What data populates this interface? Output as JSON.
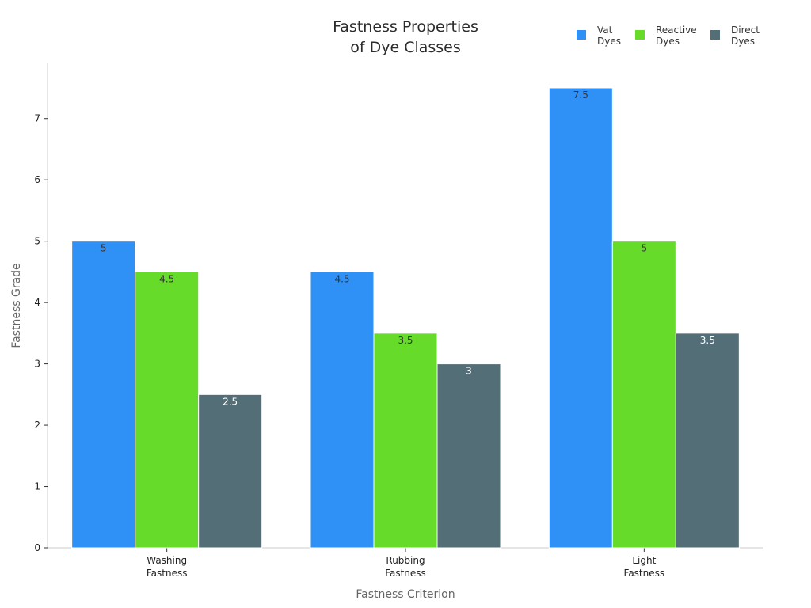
{
  "chart_data": {
    "type": "bar",
    "title": [
      "Fastness Properties",
      "of Dye Classes"
    ],
    "xlabel": "Fastness Criterion",
    "ylabel": "Fastness Grade",
    "categories": [
      [
        "Washing",
        "Fastness"
      ],
      [
        "Rubbing",
        "Fastness"
      ],
      [
        "Light",
        "Fastness"
      ]
    ],
    "series": [
      {
        "name": [
          "Vat",
          "Dyes"
        ],
        "values": [
          5,
          4.5,
          7.5
        ],
        "labels": [
          "5",
          "4.5",
          "7.5"
        ],
        "color": "#2f90f5",
        "label_color": "#333333"
      },
      {
        "name": [
          "Reactive",
          "Dyes"
        ],
        "values": [
          4.5,
          3.5,
          5
        ],
        "labels": [
          "4.5",
          "3.5",
          "5"
        ],
        "color": "#66db2a",
        "label_color": "#333333"
      },
      {
        "name": [
          "Direct",
          "Dyes"
        ],
        "values": [
          2.5,
          3,
          3.5
        ],
        "labels": [
          "2.5",
          "3",
          "3.5"
        ],
        "color": "#546e78",
        "label_color": "#ffffff"
      }
    ],
    "yticks": [
      "0",
      "1",
      "2",
      "3",
      "4",
      "5",
      "6",
      "7"
    ],
    "ylim": [
      0,
      7.9
    ],
    "grid": false,
    "legend_position": "top-right"
  }
}
